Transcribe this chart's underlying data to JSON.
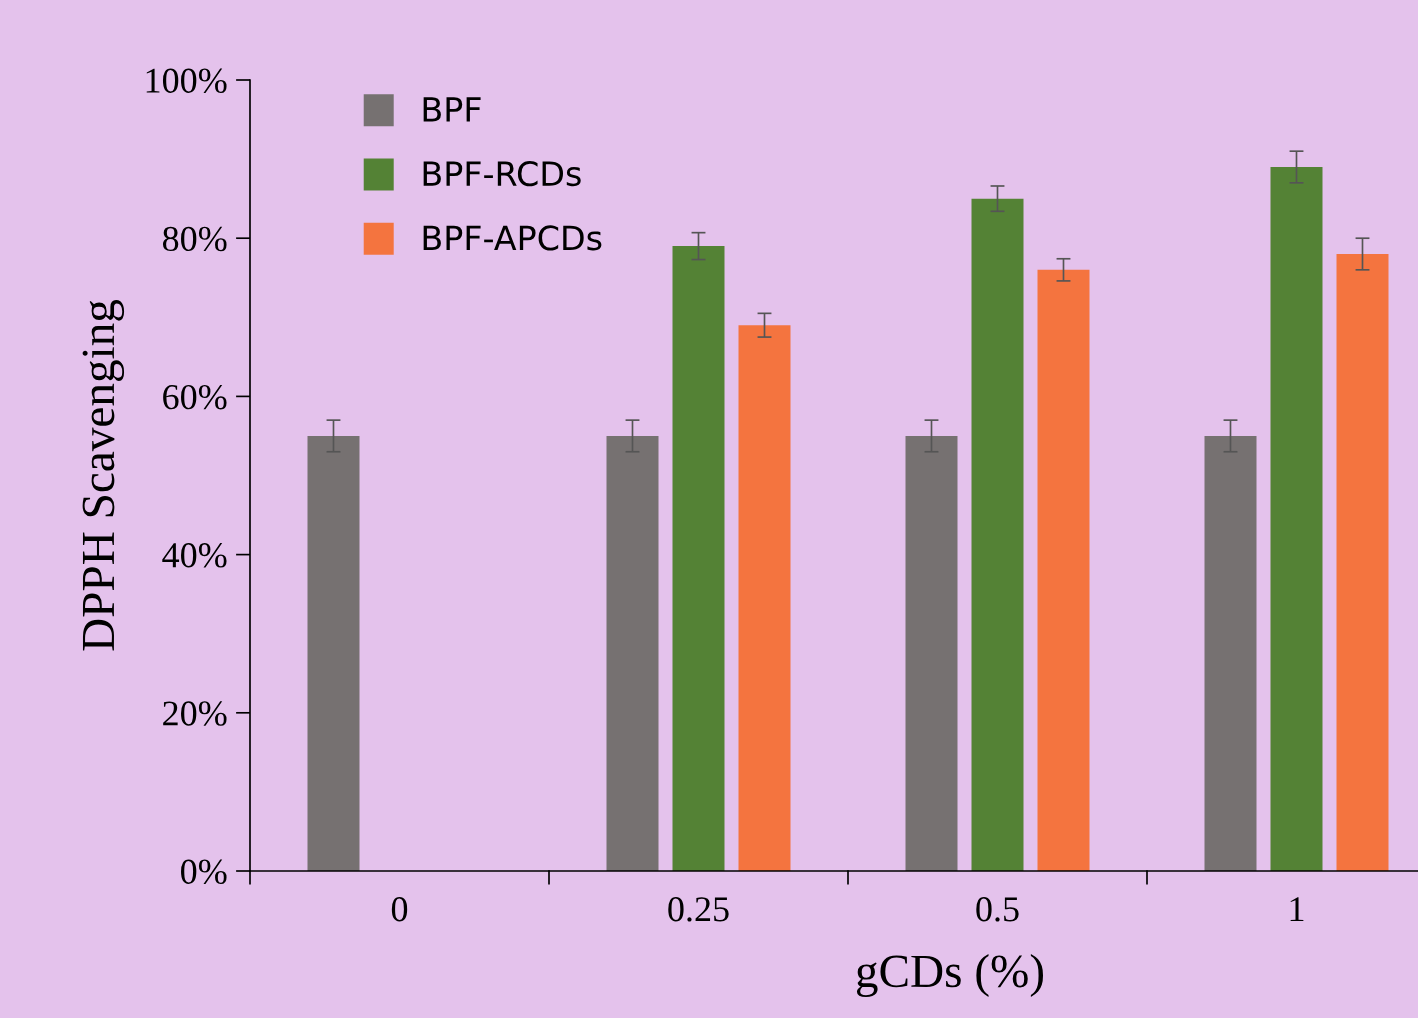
{
  "chart_data": {
    "type": "bar",
    "xlabel": "gCDs (%)",
    "ylabel": "DPPH Scavenging",
    "categories": [
      "0",
      "0.25",
      "0.5",
      "1"
    ],
    "series": [
      {
        "name": "BPF",
        "color": "#767171",
        "values": [
          55,
          55,
          55,
          55
        ],
        "errors": [
          2,
          2,
          2,
          2
        ]
      },
      {
        "name": "BPF-RCDs",
        "color": "#548235",
        "values": [
          0,
          79,
          85,
          89
        ],
        "errors": [
          null,
          1.7,
          1.6,
          2
        ]
      },
      {
        "name": "BPF-APCDs",
        "color": "#f4743f",
        "values": [
          0,
          69,
          76,
          78
        ],
        "errors": [
          null,
          1.5,
          1.4,
          2
        ]
      }
    ],
    "ylim": [
      0,
      100
    ],
    "yticks": [
      {
        "value": 0,
        "label": "0%"
      },
      {
        "value": 20,
        "label": "20%"
      },
      {
        "value": 40,
        "label": "40%"
      },
      {
        "value": 60,
        "label": "60%"
      },
      {
        "value": 80,
        "label": "80%"
      },
      {
        "value": 100,
        "label": "100%"
      }
    ],
    "grid": false,
    "legend": "top left"
  }
}
